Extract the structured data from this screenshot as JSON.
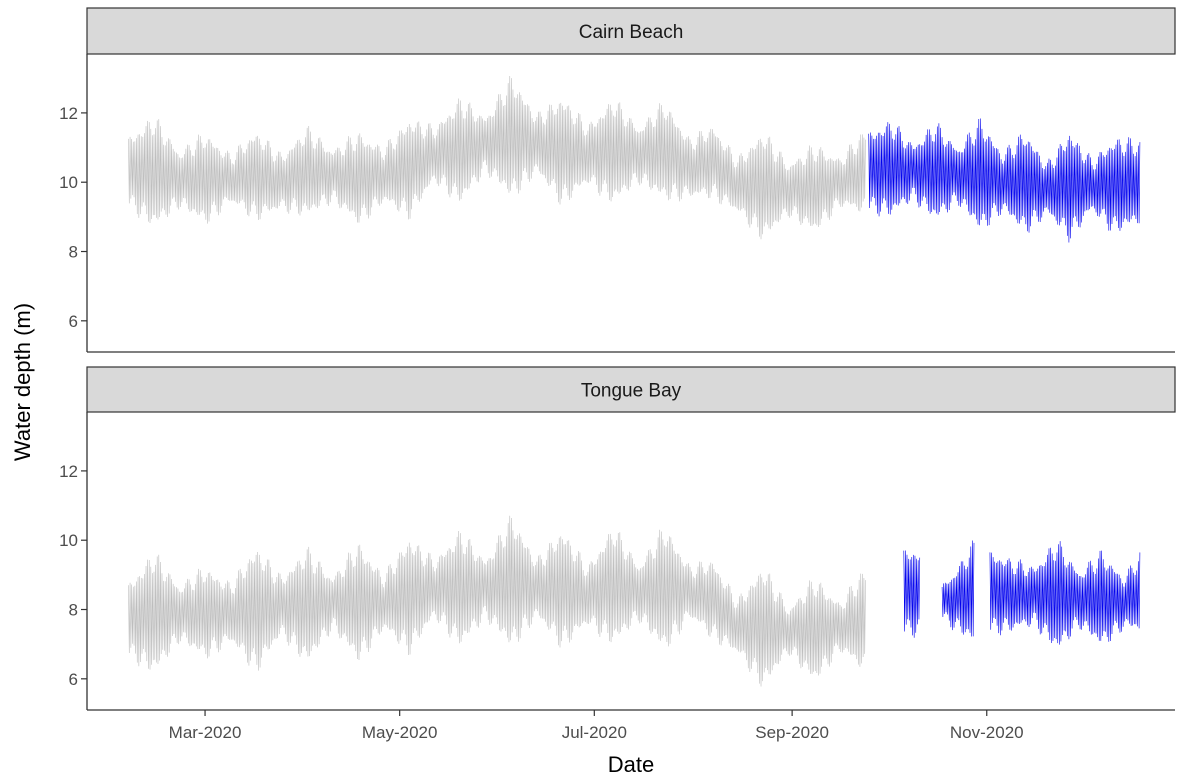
{
  "chart_data": {
    "type": "line",
    "xlabel": "Date",
    "ylabel": "Water depth (m)",
    "ylim": [
      5.1,
      13.7
    ],
    "xlim": [
      "2020-01-24",
      "2020-12-30"
    ],
    "y_ticks": [
      6,
      8,
      10,
      12
    ],
    "x_ticks": [
      {
        "date": "2020-03-01",
        "label": "Mar-2020"
      },
      {
        "date": "2020-05-01",
        "label": "May-2020"
      },
      {
        "date": "2020-07-01",
        "label": "Jul-2020"
      },
      {
        "date": "2020-09-01",
        "label": "Sep-2020"
      },
      {
        "date": "2020-11-01",
        "label": "Nov-2020"
      }
    ],
    "grid": false,
    "legend": "none",
    "colors": {
      "grey": "#bdbdbd",
      "blue": "#0000ee"
    },
    "panels": [
      {
        "name": "Cairn Beach",
        "series": [
          {
            "color": "grey",
            "start": "2020-02-06",
            "end": "2020-09-24",
            "points": [
              [
                "2020-02-06",
                10.3,
                1.9
              ],
              [
                "2020-02-14",
                10.3,
                3.2
              ],
              [
                "2020-02-22",
                10.1,
                1.5
              ],
              [
                "2020-03-01",
                10.1,
                2.6
              ],
              [
                "2020-03-09",
                10.1,
                1.3
              ],
              [
                "2020-03-17",
                10.2,
                2.5
              ],
              [
                "2020-03-25",
                10.0,
                1.5
              ],
              [
                "2020-04-02",
                10.3,
                2.5
              ],
              [
                "2020-04-10",
                10.2,
                1.4
              ],
              [
                "2020-04-18",
                10.1,
                2.6
              ],
              [
                "2020-04-26",
                10.2,
                1.5
              ],
              [
                "2020-05-04",
                10.4,
                2.8
              ],
              [
                "2020-05-12",
                10.8,
                1.5
              ],
              [
                "2020-05-20",
                10.9,
                3.0
              ],
              [
                "2020-05-28",
                11.1,
                1.5
              ],
              [
                "2020-06-05",
                11.3,
                3.5
              ],
              [
                "2020-06-13",
                11.1,
                1.6
              ],
              [
                "2020-06-21",
                10.9,
                3.1
              ],
              [
                "2020-06-29",
                10.8,
                1.6
              ],
              [
                "2020-07-07",
                10.9,
                3.0
              ],
              [
                "2020-07-15",
                10.8,
                1.5
              ],
              [
                "2020-07-23",
                10.9,
                2.8
              ],
              [
                "2020-07-31",
                10.4,
                1.6
              ],
              [
                "2020-08-07",
                10.6,
                2.0
              ],
              [
                "2020-08-15",
                9.9,
                1.5
              ],
              [
                "2020-08-23",
                9.9,
                3.1
              ],
              [
                "2020-08-31",
                9.8,
                1.4
              ],
              [
                "2020-09-08",
                9.8,
                2.5
              ],
              [
                "2020-09-16",
                10.0,
                1.3
              ],
              [
                "2020-09-24",
                10.3,
                2.4
              ]
            ]
          },
          {
            "color": "blue",
            "start": "2020-09-25",
            "end": "2020-12-19",
            "points": [
              [
                "2020-09-25",
                10.3,
                2.2
              ],
              [
                "2020-10-02",
                10.4,
                2.7
              ],
              [
                "2020-10-09",
                10.3,
                1.5
              ],
              [
                "2020-10-16",
                10.3,
                2.8
              ],
              [
                "2020-10-23",
                10.2,
                1.5
              ],
              [
                "2020-10-30",
                10.2,
                3.2
              ],
              [
                "2020-11-06",
                10.0,
                1.6
              ],
              [
                "2020-11-13",
                10.0,
                2.9
              ],
              [
                "2020-11-20",
                9.8,
                1.4
              ],
              [
                "2020-11-27",
                9.9,
                3.1
              ],
              [
                "2020-12-04",
                9.9,
                1.4
              ],
              [
                "2020-12-11",
                9.9,
                2.7
              ],
              [
                "2020-12-19",
                10.0,
                2.3
              ]
            ]
          }
        ]
      },
      {
        "name": "Tongue Bay",
        "series": [
          {
            "color": "grey",
            "start": "2020-02-06",
            "end": "2020-09-24",
            "points": [
              [
                "2020-02-06",
                7.7,
                2.0
              ],
              [
                "2020-02-14",
                7.9,
                3.5
              ],
              [
                "2020-02-22",
                7.9,
                1.5
              ],
              [
                "2020-03-01",
                7.9,
                2.6
              ],
              [
                "2020-03-09",
                7.9,
                1.6
              ],
              [
                "2020-03-17",
                8.0,
                3.6
              ],
              [
                "2020-03-25",
                8.1,
                1.6
              ],
              [
                "2020-04-02",
                8.1,
                3.3
              ],
              [
                "2020-04-10",
                8.2,
                1.4
              ],
              [
                "2020-04-18",
                8.2,
                3.4
              ],
              [
                "2020-04-26",
                8.2,
                1.5
              ],
              [
                "2020-05-04",
                8.4,
                3.3
              ],
              [
                "2020-05-12",
                8.6,
                1.6
              ],
              [
                "2020-05-20",
                8.6,
                3.3
              ],
              [
                "2020-05-28",
                8.6,
                1.6
              ],
              [
                "2020-06-05",
                8.8,
                3.8
              ],
              [
                "2020-06-13",
                8.6,
                1.6
              ],
              [
                "2020-06-21",
                8.6,
                3.4
              ],
              [
                "2020-06-29",
                8.4,
                1.6
              ],
              [
                "2020-07-07",
                8.7,
                3.4
              ],
              [
                "2020-07-15",
                8.5,
                1.5
              ],
              [
                "2020-07-23",
                8.6,
                3.6
              ],
              [
                "2020-07-31",
                8.5,
                1.4
              ],
              [
                "2020-08-07",
                8.3,
                2.2
              ],
              [
                "2020-08-15",
                7.5,
                1.5
              ],
              [
                "2020-08-23",
                7.5,
                3.5
              ],
              [
                "2020-08-31",
                7.4,
                1.2
              ],
              [
                "2020-09-08",
                7.4,
                3.0
              ],
              [
                "2020-09-16",
                7.5,
                1.3
              ],
              [
                "2020-09-24",
                7.7,
                3.0
              ]
            ]
          },
          {
            "color": "blue",
            "start": "2020-10-06",
            "end": "2020-10-11",
            "points": [
              [
                "2020-10-06",
                8.5,
                2.4
              ],
              [
                "2020-10-11",
                8.5,
                2.4
              ]
            ]
          },
          {
            "color": "blue",
            "start": "2020-10-18",
            "end": "2020-10-28",
            "points": [
              [
                "2020-10-18",
                8.2,
                0.9
              ],
              [
                "2020-10-23",
                8.3,
                1.8
              ],
              [
                "2020-10-28",
                8.5,
                2.9
              ]
            ]
          },
          {
            "color": "blue",
            "start": "2020-11-02",
            "end": "2020-12-19",
            "points": [
              [
                "2020-11-02",
                8.5,
                2.3
              ],
              [
                "2020-11-09",
                8.4,
                2.0
              ],
              [
                "2020-11-16",
                8.4,
                1.6
              ],
              [
                "2020-11-23",
                8.4,
                3.2
              ],
              [
                "2020-11-30",
                8.3,
                1.5
              ],
              [
                "2020-12-07",
                8.3,
                2.7
              ],
              [
                "2020-12-14",
                8.2,
                1.4
              ],
              [
                "2020-12-19",
                8.5,
                2.2
              ]
            ]
          }
        ]
      }
    ]
  }
}
